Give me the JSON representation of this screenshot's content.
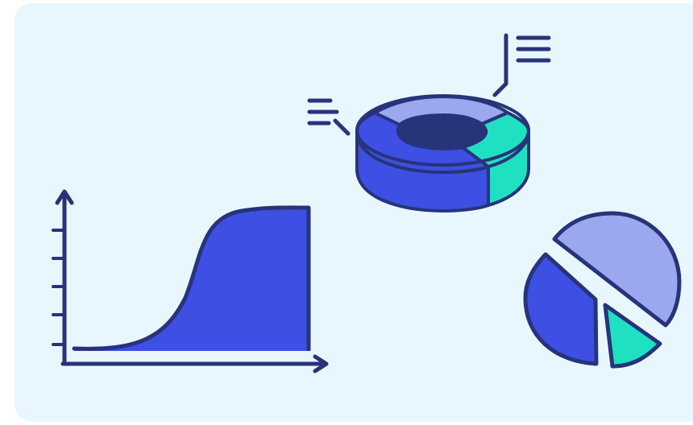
{
  "illustration": {
    "colors": {
      "background": "#e8f7fd",
      "outline": "#27347a",
      "primary": "#3e4fe3",
      "light": "#9ba8f0",
      "accent": "#1fe1c1"
    },
    "icons": [
      "growth-chart-icon",
      "donut-chart-3d-icon",
      "exploded-pie-chart-icon",
      "legend-lines-icon"
    ]
  }
}
